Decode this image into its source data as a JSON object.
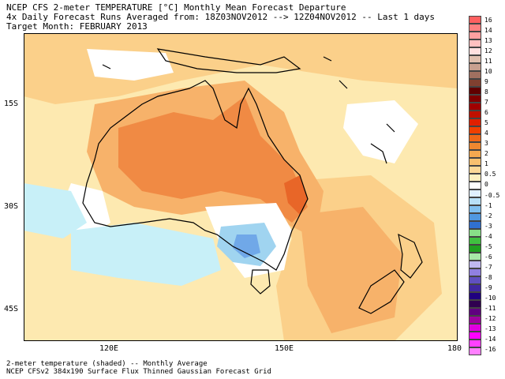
{
  "header": {
    "line1": "NCEP CFS 2-meter TEMPERATURE [°C] Monthly Mean Forecast Departure",
    "line2": "4x Daily Forecast Runs Averaged from: 18Z03NOV2012 --> 12Z04NOV2012 -- Last 1 days",
    "line3": "Target Month: FEBRUARY 2013"
  },
  "axes": {
    "lat_labels": [
      "15S",
      "30S",
      "45S"
    ],
    "lon_labels": [
      "120E",
      "150E",
      "180"
    ]
  },
  "footer": {
    "line1": "2-meter temperature (shaded) -- Monthly Average",
    "line2": "NCEP CFSv2 384x190 Surface Flux Thinned Gaussian Forecast Grid"
  },
  "legend": {
    "labels": [
      "16",
      "14",
      "13",
      "12",
      "11",
      "10",
      "9",
      "8",
      "7",
      "6",
      "5",
      "4",
      "3",
      "2",
      "1",
      "0.5",
      "0",
      "-0.5",
      "-1",
      "-2",
      "-3",
      "-4",
      "-5",
      "-6",
      "-7",
      "-8",
      "-9",
      "-10",
      "-11",
      "-12",
      "-13",
      "-14",
      "-16"
    ],
    "colors": [
      "#ff6060",
      "#ff8080",
      "#ffa0a0",
      "#ffc0c0",
      "#ffe0e0",
      "#e0c0b0",
      "#c8a090",
      "#a07060",
      "#804030",
      "#600000",
      "#800000",
      "#a00000",
      "#c01000",
      "#e02000",
      "#f04000",
      "#f06818",
      "#f08830",
      "#f4a850",
      "#f8c070",
      "#fcd898",
      "#fff0c0",
      "#ffffff",
      "#e0f0ff",
      "#b8e0f8",
      "#80c0f0",
      "#5098e0",
      "#3070d0",
      "#88e088",
      "#40c040",
      "#20a020",
      "#a8e8a8",
      "#c0b8f0",
      "#9080e0",
      "#6050c0",
      "#4028a0",
      "#200080",
      "#300050",
      "#600080",
      "#a000a0",
      "#e000e0",
      "#ff00ff",
      "#ff40ff",
      "#ff80ff"
    ]
  },
  "map": {
    "region": "Australia",
    "colors": {
      "warm_low": "#fde9b0",
      "warm_mid": "#fbd08a",
      "warm_high": "#f7b26a",
      "hot": "#f08a44",
      "hottest": "#e86628",
      "neutral": "#ffffff",
      "cool": "#c8f0f8",
      "cooler": "#a0d4f0",
      "coolest": "#70a8e8"
    }
  }
}
